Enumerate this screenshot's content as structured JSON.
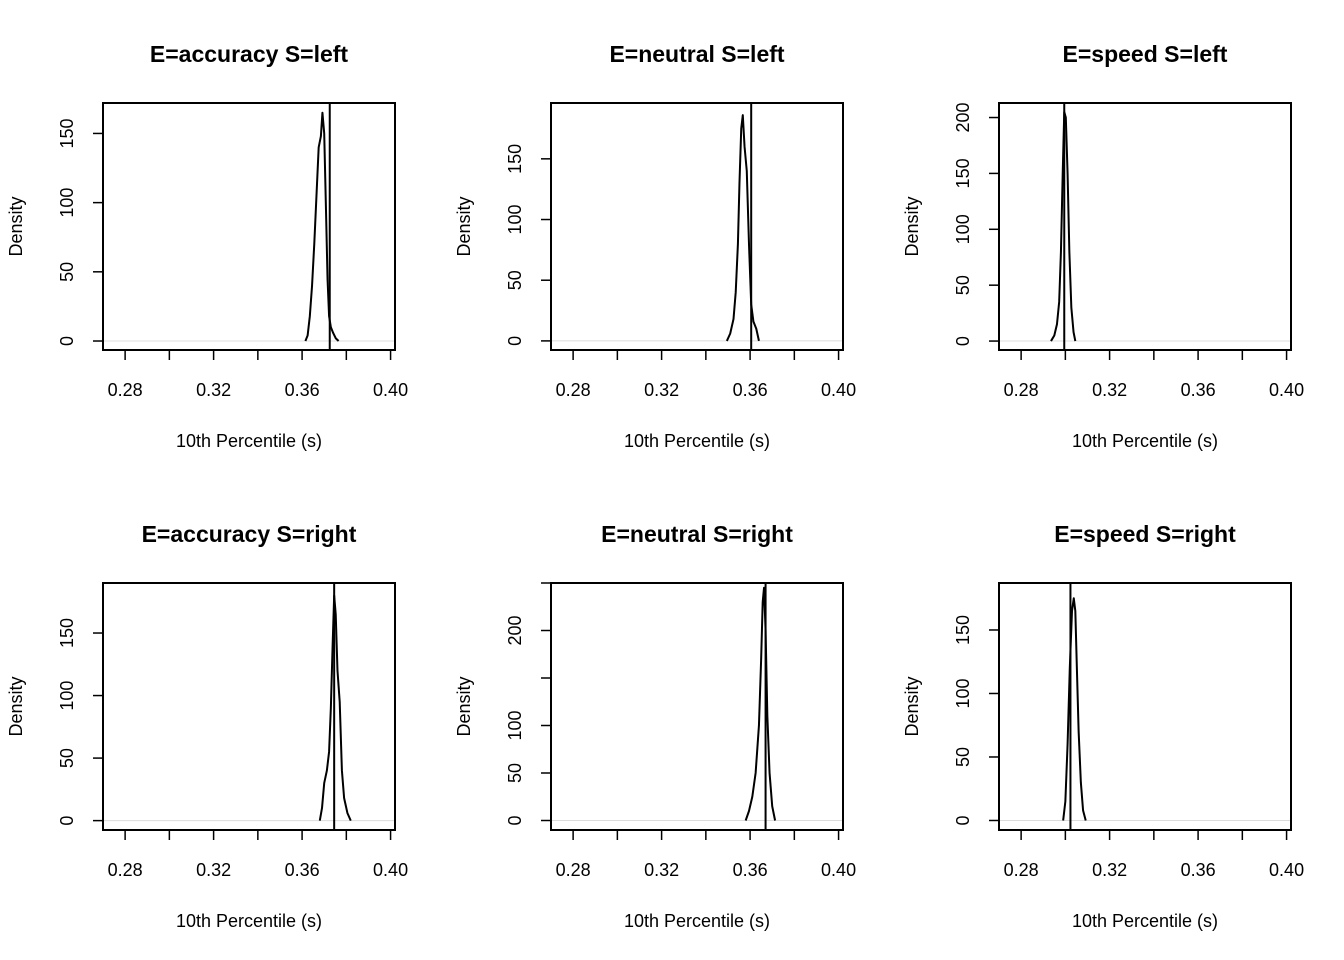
{
  "chart_data": [
    {
      "type": "line",
      "title": "E=accuracy S=left",
      "xlabel": "10th Percentile (s)",
      "ylabel": "Density",
      "xlim": [
        0.27,
        0.402
      ],
      "ylim": [
        -6.5,
        172
      ],
      "xticks": [
        0.28,
        0.3,
        0.32,
        0.34,
        0.36,
        0.38,
        0.4
      ],
      "xtick_labels": [
        "0.28",
        "",
        "0.32",
        "",
        "0.36",
        "",
        "0.40"
      ],
      "yticks": [
        0,
        50,
        100,
        150
      ],
      "ytick_labels": [
        "0",
        "50",
        "100",
        "150"
      ],
      "observed_x": 0.3725,
      "density": {
        "x": [
          0.3615,
          0.3625,
          0.3635,
          0.3645,
          0.3655,
          0.3665,
          0.3675,
          0.3685,
          0.3692,
          0.37,
          0.3708,
          0.3715,
          0.3722,
          0.373,
          0.374,
          0.3752,
          0.3765
        ],
        "y": [
          0,
          4,
          18,
          40,
          70,
          105,
          140,
          148,
          165,
          150,
          95,
          45,
          18,
          10,
          6,
          2,
          0
        ]
      }
    },
    {
      "type": "line",
      "title": "E=neutral S=left",
      "xlabel": "10th Percentile (s)",
      "ylabel": "Density",
      "xlim": [
        0.27,
        0.402
      ],
      "ylim": [
        -7.5,
        196
      ],
      "xticks": [
        0.28,
        0.3,
        0.32,
        0.34,
        0.36,
        0.38,
        0.4
      ],
      "xtick_labels": [
        "0.28",
        "",
        "0.32",
        "",
        "0.36",
        "",
        "0.40"
      ],
      "yticks": [
        0,
        50,
        100,
        150
      ],
      "ytick_labels": [
        "0",
        "50",
        "100",
        "150"
      ],
      "observed_x": 0.3605,
      "density": {
        "x": [
          0.3495,
          0.351,
          0.3525,
          0.3535,
          0.3545,
          0.3552,
          0.356,
          0.3567,
          0.3575,
          0.3585,
          0.3595,
          0.3605,
          0.3615,
          0.3628,
          0.364
        ],
        "y": [
          0,
          6,
          18,
          40,
          80,
          130,
          175,
          186,
          160,
          140,
          80,
          30,
          16,
          10,
          0
        ]
      }
    },
    {
      "type": "line",
      "title": "E=speed S=left",
      "xlabel": "10th Percentile (s)",
      "ylabel": "Density",
      "xlim": [
        0.27,
        0.402
      ],
      "ylim": [
        -8,
        213
      ],
      "xticks": [
        0.28,
        0.3,
        0.32,
        0.34,
        0.36,
        0.38,
        0.4
      ],
      "xtick_labels": [
        "0.28",
        "",
        "0.32",
        "",
        "0.36",
        "",
        "0.40"
      ],
      "yticks": [
        0,
        50,
        100,
        150,
        200
      ],
      "ytick_labels": [
        "0",
        "50",
        "100",
        "150",
        "200"
      ],
      "observed_x": 0.2995,
      "density": {
        "x": [
          0.2935,
          0.295,
          0.2962,
          0.2972,
          0.298,
          0.2988,
          0.2995,
          0.3002,
          0.301,
          0.3018,
          0.3027,
          0.3037,
          0.3045
        ],
        "y": [
          0,
          5,
          15,
          35,
          80,
          150,
          205,
          200,
          150,
          80,
          30,
          8,
          0
        ]
      }
    },
    {
      "type": "line",
      "title": "E=accuracy S=right",
      "xlabel": "10th Percentile (s)",
      "ylabel": "Density",
      "xlim": [
        0.27,
        0.402
      ],
      "ylim": [
        -7.5,
        190
      ],
      "xticks": [
        0.28,
        0.3,
        0.32,
        0.34,
        0.36,
        0.38,
        0.4
      ],
      "xtick_labels": [
        "0.28",
        "",
        "0.32",
        "",
        "0.36",
        "",
        "0.40"
      ],
      "yticks": [
        0,
        50,
        100,
        150
      ],
      "ytick_labels": [
        "0",
        "50",
        "100",
        "150"
      ],
      "observed_x": 0.3745,
      "density": {
        "x": [
          0.368,
          0.369,
          0.37,
          0.3712,
          0.3722,
          0.373,
          0.3738,
          0.3745,
          0.3752,
          0.376,
          0.377,
          0.378,
          0.379,
          0.3805,
          0.382
        ],
        "y": [
          0,
          10,
          30,
          40,
          55,
          90,
          140,
          180,
          165,
          120,
          95,
          40,
          18,
          6,
          0
        ]
      }
    },
    {
      "type": "line",
      "title": "E=neutral S=right",
      "xlabel": "10th Percentile (s)",
      "ylabel": "Density",
      "xlim": [
        0.27,
        0.402
      ],
      "ylim": [
        -10,
        250
      ],
      "xticks": [
        0.28,
        0.3,
        0.32,
        0.34,
        0.36,
        0.38,
        0.4
      ],
      "xtick_labels": [
        "0.28",
        "",
        "0.32",
        "",
        "0.36",
        "",
        "0.40"
      ],
      "yticks": [
        0,
        50,
        100,
        150,
        200,
        250
      ],
      "ytick_labels": [
        "0",
        "50",
        "100",
        "",
        "200",
        ""
      ],
      "observed_x": 0.367,
      "density": {
        "x": [
          0.358,
          0.3595,
          0.361,
          0.3625,
          0.364,
          0.365,
          0.3657,
          0.3663,
          0.367,
          0.3678,
          0.3688,
          0.37,
          0.3713
        ],
        "y": [
          0,
          10,
          25,
          50,
          100,
          170,
          230,
          245,
          200,
          110,
          50,
          15,
          0
        ]
      }
    },
    {
      "type": "line",
      "title": "E=speed S=right",
      "xlabel": "10th Percentile (s)",
      "ylabel": "Density",
      "xlim": [
        0.27,
        0.402
      ],
      "ylim": [
        -7.5,
        187
      ],
      "xticks": [
        0.28,
        0.3,
        0.32,
        0.34,
        0.36,
        0.38,
        0.4
      ],
      "xtick_labels": [
        "0.28",
        "",
        "0.32",
        "",
        "0.36",
        "",
        "0.40"
      ],
      "yticks": [
        0,
        50,
        100,
        150
      ],
      "ytick_labels": [
        "0",
        "50",
        "100",
        "150"
      ],
      "observed_x": 0.3023,
      "density": {
        "x": [
          0.299,
          0.3,
          0.301,
          0.302,
          0.303,
          0.3038,
          0.3045,
          0.3052,
          0.306,
          0.307,
          0.308,
          0.3092
        ],
        "y": [
          0,
          15,
          60,
          120,
          165,
          175,
          165,
          120,
          70,
          30,
          8,
          0
        ]
      }
    }
  ]
}
